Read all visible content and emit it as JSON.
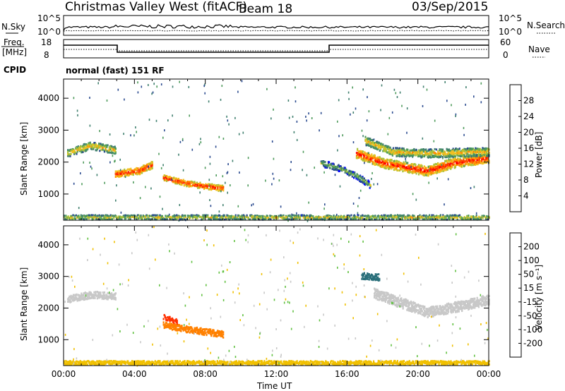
{
  "header": {
    "title": "Christmas Valley West (fitACF)",
    "beam": "Beam 18",
    "date": "03/Sep/2015"
  },
  "status_panel": {
    "nsky_label": "N.Sky",
    "nsearch_label": "N.Search",
    "count_ticks_left": [
      "10^5",
      "10^0"
    ],
    "count_ticks_right": [
      "10^5",
      "10^0"
    ],
    "freq_label_1": "Freq.",
    "freq_label_2": "[MHz]",
    "freq_ticks": [
      "18",
      "8"
    ],
    "nave_label": "Nave",
    "nave_ticks": [
      "60",
      "0"
    ],
    "cpid_label": "CPID",
    "cpid_value": "normal (fast) 151 RF"
  },
  "colors": {
    "power": [
      "#0000ff",
      "#2a4a8f",
      "#3f7f6e",
      "#4c9a5a",
      "#a7c13a",
      "#f0c020",
      "#ff8c00",
      "#ff4a00",
      "#ff0000"
    ],
    "velocity": [
      "#1a28c0",
      "#2a6f7a",
      "#2f8f3a",
      "#60c040",
      "#c8c8c8",
      "#f0c000",
      "#ff8000",
      "#ff3000",
      "#ff0000"
    ]
  },
  "chart_data": [
    {
      "type": "heatmap",
      "name": "power",
      "ylabel": "Slant Range [km]",
      "ylim": [
        180,
        4600
      ],
      "y_ticks": [
        "4000",
        "3000",
        "2000",
        "1000"
      ],
      "xlim_hours": [
        0,
        24
      ],
      "colorbar": {
        "label": "Power [dB]",
        "ticks": [
          "28",
          "24",
          "20",
          "16",
          "12",
          "8",
          "4"
        ],
        "range": [
          0,
          32
        ]
      },
      "echo_bands": [
        {
          "t": [
            0.2,
            1.5,
            2.9
          ],
          "range": [
            2300,
            2550,
            2400
          ],
          "width": 230,
          "value": 14
        },
        {
          "t": [
            2.9,
            4.2,
            5.0
          ],
          "range": [
            1650,
            1750,
            1950
          ],
          "width": 220,
          "value": 22
        },
        {
          "t": [
            5.6,
            7.0,
            9.0
          ],
          "range": [
            1550,
            1350,
            1200
          ],
          "width": 180,
          "value": 22
        },
        {
          "t": [
            16.5,
            18.0,
            20.5,
            22.0,
            24.0
          ],
          "range": [
            2300,
            2000,
            1750,
            2000,
            2150
          ],
          "width": 300,
          "value": 22
        },
        {
          "t": [
            17.0,
            18.5,
            20.5,
            24.0
          ],
          "range": [
            2700,
            2350,
            2300,
            2350
          ],
          "width": 260,
          "value": 14
        },
        {
          "t": [
            14.5,
            15.5,
            16.5,
            17.3
          ],
          "range": [
            2000,
            1850,
            1600,
            1300
          ],
          "width": 200,
          "value": 8
        },
        {
          "t": [
            0.0,
            24.0
          ],
          "range": [
            300,
            300
          ],
          "width": 140,
          "value": 12
        }
      ]
    },
    {
      "type": "heatmap",
      "name": "velocity",
      "xlabel": "Time UT",
      "ylabel": "Slant Range [km]",
      "ylim": [
        180,
        4600
      ],
      "y_ticks": [
        "4000",
        "3000",
        "2000",
        "1000"
      ],
      "x_ticks": [
        "00:00",
        "04:00",
        "08:00",
        "12:00",
        "16:00",
        "20:00",
        "00:00"
      ],
      "xlim_hours": [
        0,
        24
      ],
      "colorbar": {
        "label": "Velocity [m s⁻¹]",
        "ticks": [
          "200",
          "100",
          "50",
          "15",
          "-15",
          "-50",
          "-100",
          "-200"
        ],
        "levels": [
          200,
          100,
          50,
          15,
          -15,
          -50,
          -100,
          -200
        ]
      },
      "echo_bands": [
        {
          "t": [
            0.2,
            1.5,
            2.9
          ],
          "range": [
            2300,
            2450,
            2400
          ],
          "width": 220,
          "value": 0
        },
        {
          "t": [
            5.6,
            7.0,
            9.0
          ],
          "range": [
            1500,
            1350,
            1200
          ],
          "width": 200,
          "value": -70
        },
        {
          "t": [
            5.6,
            6.4
          ],
          "range": [
            1750,
            1600
          ],
          "width": 150,
          "value": -180
        },
        {
          "t": [
            16.8,
            17.8
          ],
          "range": [
            3050,
            3000
          ],
          "width": 200,
          "value": 120
        },
        {
          "t": [
            17.5,
            19.0,
            20.5,
            22.5,
            24.0
          ],
          "range": [
            2500,
            2200,
            1900,
            2100,
            2300
          ],
          "width": 320,
          "value": 0
        },
        {
          "t": [
            0.0,
            24.0
          ],
          "range": [
            300,
            300
          ],
          "width": 120,
          "value": -30
        }
      ]
    }
  ]
}
